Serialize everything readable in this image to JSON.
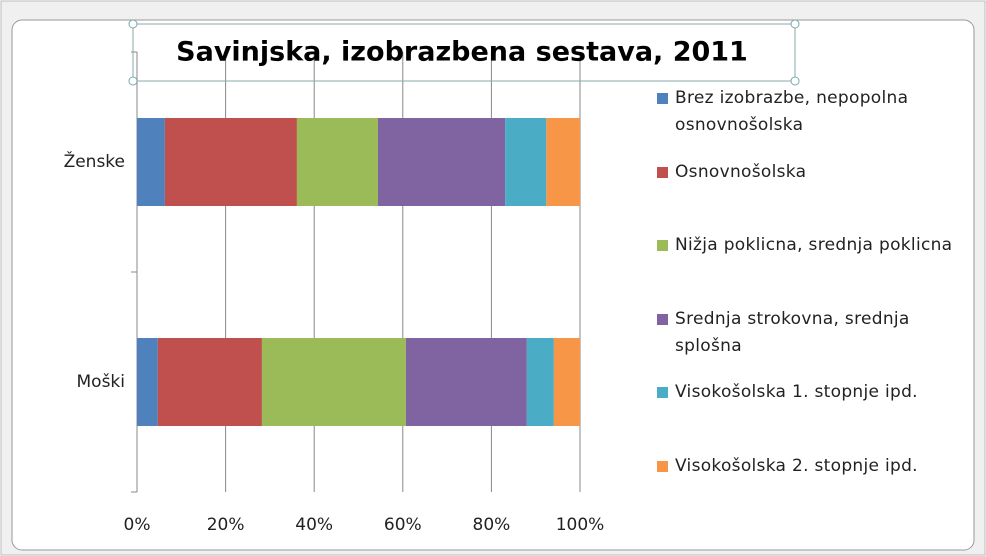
{
  "chart_data": {
    "type": "stacked_bar_horizontal",
    "title": "Savinjska, izobrazbena sestava, 2011",
    "categories": [
      "Ženske",
      "Moški"
    ],
    "series": [
      {
        "name": "Brez izobrazbe, nepopolna osnovnošolska",
        "color": "#4f81bd",
        "values": [
          6.3,
          4.7
        ]
      },
      {
        "name": "Osnovnošolska",
        "color": "#c0504d",
        "values": [
          29.8,
          23.5
        ]
      },
      {
        "name": "Nižja poklicna, srednja poklicna",
        "color": "#9bbb59",
        "values": [
          18.3,
          32.5
        ]
      },
      {
        "name": "Srednja strokovna, srednja splošna",
        "color": "#8064a2",
        "values": [
          28.7,
          27.3
        ]
      },
      {
        "name": "Visokošolska 1. stopnje ipd.",
        "color": "#4bacc6",
        "values": [
          9.3,
          6.1
        ]
      },
      {
        "name": "Visokošolska 2. stopnje ipd.",
        "color": "#f79646",
        "values": [
          7.6,
          5.9
        ]
      }
    ],
    "xlim": [
      0,
      100
    ],
    "xticks": [
      {
        "value": 0,
        "label": "0%"
      },
      {
        "value": 20,
        "label": "20%"
      },
      {
        "value": 40,
        "label": "40%"
      },
      {
        "value": 60,
        "label": "60%"
      },
      {
        "value": 80,
        "label": "80%"
      },
      {
        "value": 100,
        "label": "100%"
      }
    ],
    "grid": true,
    "legend": "right"
  }
}
